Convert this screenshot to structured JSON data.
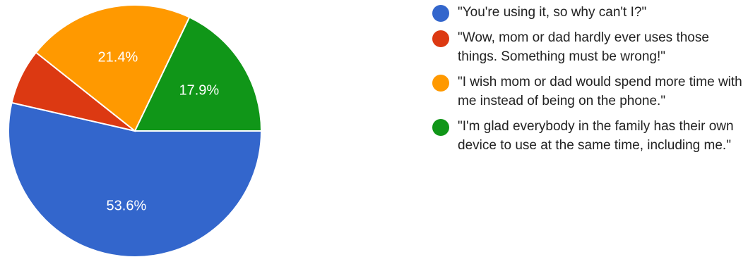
{
  "chart_data": {
    "type": "pie",
    "categories": [
      "\"You're using it, so why can't I?\"",
      "\"Wow, mom or dad hardly ever uses those things. Something must be wrong!\"",
      "\"I wish mom or dad would spend more time with me instead of being on the phone.\"",
      "\"I'm glad everybody in the family has their own device to use at the same time, including me.\""
    ],
    "values": [
      53.6,
      7.1,
      21.4,
      17.9
    ],
    "data_labels": [
      "53.6%",
      "",
      "21.4%",
      "17.9%"
    ],
    "colors": [
      "#3366cc",
      "#dc3912",
      "#ff9900",
      "#109618"
    ],
    "legend_position": "right",
    "title": ""
  }
}
